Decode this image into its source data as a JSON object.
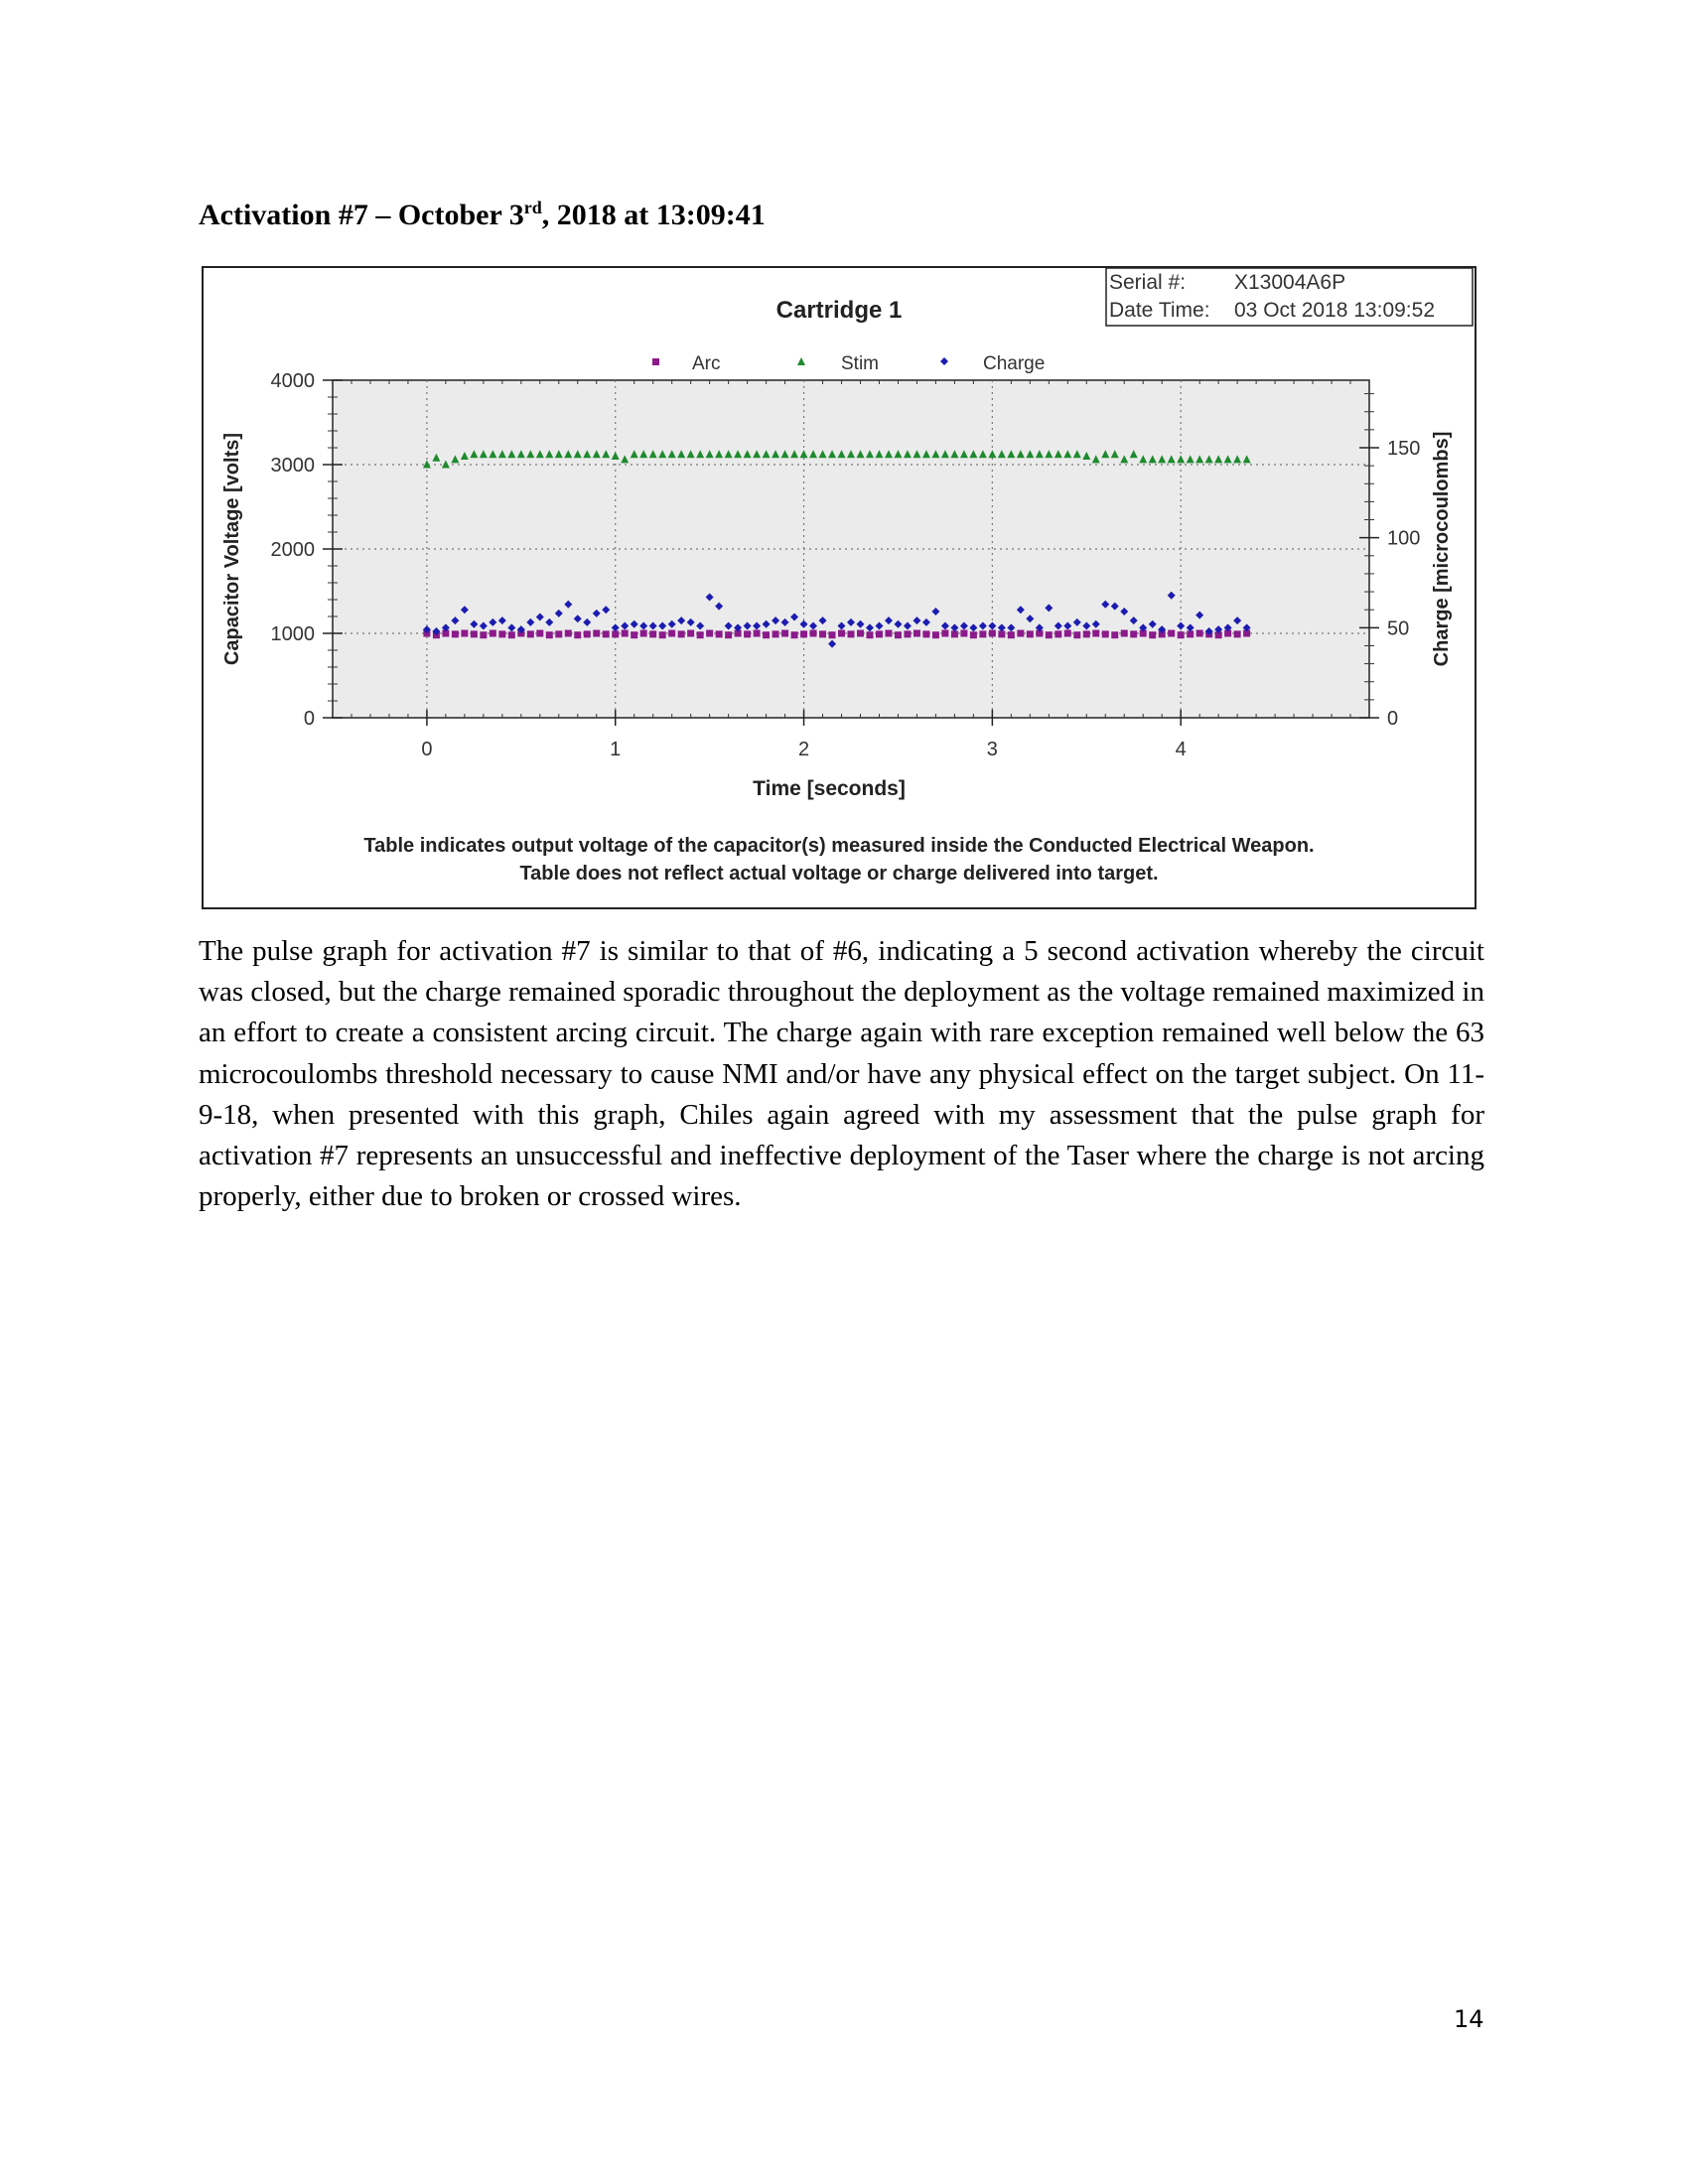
{
  "heading": {
    "prefix": "Activation #7 – October 3",
    "superscript": "rd",
    "suffix": ", 2018 at 13:09:41"
  },
  "figure": {
    "info_box": {
      "serial_label": "Serial #:",
      "serial_value": "X13004A6P",
      "datetime_label": "Date Time:",
      "datetime_value": "03 Oct 2018 13:09:52"
    },
    "caption_line1": "Table indicates output voltage of the capacitor(s) measured inside the Conducted Electrical Weapon.",
    "caption_line2": "Table does not reflect actual voltage or charge delivered into target.",
    "colors": {
      "arc": "#8b1a8b",
      "stim": "#1e8a2e",
      "charge": "#1c1cb0",
      "plot_bg": "#ebebeb"
    }
  },
  "chart_data": {
    "type": "scatter",
    "title": "Cartridge 1",
    "xlabel": "Time [seconds]",
    "ylabel": "Capacitor Voltage [volts]",
    "y2label": "Charge [microcoulombs]",
    "xlim": [
      -0.5,
      5
    ],
    "ylim": [
      0,
      4000
    ],
    "y2lim": [
      0,
      187.5
    ],
    "xticks": [
      0,
      1,
      2,
      3,
      4
    ],
    "yticks": [
      0,
      1000,
      2000,
      3000,
      4000
    ],
    "y2ticks": [
      0,
      50,
      100,
      150
    ],
    "legend": {
      "placement": "top-center",
      "entries": [
        "Arc",
        "Stim",
        "Charge"
      ]
    },
    "grid": true,
    "series": [
      {
        "name": "Arc",
        "axis": "left",
        "x": [
          0,
          0.05,
          0.1,
          0.15,
          0.2,
          0.25,
          0.3,
          0.35,
          0.4,
          0.45,
          0.5,
          0.55,
          0.6,
          0.65,
          0.7,
          0.75,
          0.8,
          0.85,
          0.9,
          0.95,
          1,
          1.05,
          1.1,
          1.15,
          1.2,
          1.25,
          1.3,
          1.35,
          1.4,
          1.45,
          1.5,
          1.55,
          1.6,
          1.65,
          1.7,
          1.75,
          1.8,
          1.85,
          1.9,
          1.95,
          2,
          2.05,
          2.1,
          2.15,
          2.2,
          2.25,
          2.3,
          2.35,
          2.4,
          2.45,
          2.5,
          2.55,
          2.6,
          2.65,
          2.7,
          2.75,
          2.8,
          2.85,
          2.9,
          2.95,
          3,
          3.05,
          3.1,
          3.15,
          3.2,
          3.25,
          3.3,
          3.35,
          3.4,
          3.45,
          3.5,
          3.55,
          3.6,
          3.65,
          3.7,
          3.75,
          3.8,
          3.85,
          3.9,
          3.95,
          4,
          4.05,
          4.1,
          4.15,
          4.2,
          4.25,
          4.3,
          4.35
        ],
        "y": [
          1000,
          980,
          1000,
          990,
          1000,
          990,
          980,
          1000,
          990,
          980,
          1000,
          990,
          1000,
          980,
          990,
          1000,
          980,
          990,
          1000,
          990,
          990,
          1000,
          980,
          1000,
          990,
          980,
          1000,
          990,
          1000,
          980,
          1000,
          990,
          980,
          1000,
          990,
          1000,
          980,
          990,
          1000,
          980,
          990,
          1000,
          990,
          980,
          1000,
          990,
          1000,
          980,
          990,
          1000,
          980,
          990,
          1000,
          990,
          980,
          1000,
          990,
          1000,
          980,
          990,
          1000,
          990,
          980,
          1000,
          990,
          1000,
          980,
          990,
          1000,
          980,
          990,
          1000,
          990,
          980,
          1000,
          990,
          1000,
          980,
          990,
          1000,
          980,
          990,
          1000,
          990,
          980,
          1000,
          990,
          1000
        ]
      },
      {
        "name": "Stim",
        "axis": "left",
        "x": [
          0,
          0.05,
          0.1,
          0.15,
          0.2,
          0.25,
          0.3,
          0.35,
          0.4,
          0.45,
          0.5,
          0.55,
          0.6,
          0.65,
          0.7,
          0.75,
          0.8,
          0.85,
          0.9,
          0.95,
          1,
          1.05,
          1.1,
          1.15,
          1.2,
          1.25,
          1.3,
          1.35,
          1.4,
          1.45,
          1.5,
          1.55,
          1.6,
          1.65,
          1.7,
          1.75,
          1.8,
          1.85,
          1.9,
          1.95,
          2,
          2.05,
          2.1,
          2.15,
          2.2,
          2.25,
          2.3,
          2.35,
          2.4,
          2.45,
          2.5,
          2.55,
          2.6,
          2.65,
          2.7,
          2.75,
          2.8,
          2.85,
          2.9,
          2.95,
          3,
          3.05,
          3.1,
          3.15,
          3.2,
          3.25,
          3.3,
          3.35,
          3.4,
          3.45,
          3.5,
          3.55,
          3.6,
          3.65,
          3.7,
          3.75,
          3.8,
          3.85,
          3.9,
          3.95,
          4,
          4.05,
          4.1,
          4.15,
          4.2,
          4.25,
          4.3,
          4.35
        ],
        "y": [
          3000,
          3080,
          3000,
          3060,
          3100,
          3120,
          3120,
          3120,
          3120,
          3120,
          3120,
          3120,
          3120,
          3120,
          3120,
          3120,
          3120,
          3120,
          3120,
          3120,
          3100,
          3060,
          3120,
          3120,
          3120,
          3120,
          3120,
          3120,
          3120,
          3120,
          3120,
          3120,
          3120,
          3120,
          3120,
          3120,
          3120,
          3120,
          3120,
          3120,
          3120,
          3120,
          3120,
          3120,
          3120,
          3120,
          3120,
          3120,
          3120,
          3120,
          3120,
          3120,
          3120,
          3120,
          3120,
          3120,
          3120,
          3120,
          3120,
          3120,
          3120,
          3120,
          3120,
          3120,
          3120,
          3120,
          3120,
          3120,
          3120,
          3120,
          3100,
          3060,
          3120,
          3120,
          3060,
          3120,
          3060,
          3060,
          3060,
          3060,
          3060,
          3060,
          3060,
          3060,
          3060,
          3060,
          3060,
          3060
        ]
      },
      {
        "name": "Charge",
        "axis": "right",
        "x": [
          0,
          0.05,
          0.1,
          0.15,
          0.2,
          0.25,
          0.3,
          0.35,
          0.4,
          0.45,
          0.5,
          0.55,
          0.6,
          0.65,
          0.7,
          0.75,
          0.8,
          0.85,
          0.9,
          0.95,
          1,
          1.05,
          1.1,
          1.15,
          1.2,
          1.25,
          1.3,
          1.35,
          1.4,
          1.45,
          1.5,
          1.55,
          1.6,
          1.65,
          1.7,
          1.75,
          1.8,
          1.85,
          1.9,
          1.95,
          2,
          2.05,
          2.1,
          2.15,
          2.2,
          2.25,
          2.3,
          2.35,
          2.4,
          2.45,
          2.5,
          2.55,
          2.6,
          2.65,
          2.7,
          2.75,
          2.8,
          2.85,
          2.9,
          2.95,
          3,
          3.05,
          3.1,
          3.15,
          3.2,
          3.25,
          3.3,
          3.35,
          3.4,
          3.45,
          3.5,
          3.55,
          3.6,
          3.65,
          3.7,
          3.75,
          3.8,
          3.85,
          3.9,
          3.95,
          4,
          4.05,
          4.1,
          4.15,
          4.2,
          4.25,
          4.3,
          4.35
        ],
        "y": [
          49,
          48,
          50,
          54,
          60,
          52,
          51,
          53,
          54,
          50,
          49,
          53,
          56,
          53,
          58,
          63,
          55,
          53,
          58,
          60,
          50,
          51,
          52,
          51,
          51,
          51,
          52,
          54,
          53,
          51,
          67,
          62,
          51,
          50,
          51,
          51,
          52,
          54,
          53,
          56,
          52,
          51,
          54,
          41,
          51,
          53,
          52,
          50,
          51,
          54,
          52,
          51,
          54,
          53,
          59,
          51,
          50,
          51,
          50,
          51,
          51,
          50,
          50,
          60,
          55,
          50,
          61,
          51,
          51,
          53,
          51,
          52,
          63,
          62,
          59,
          54,
          50,
          52,
          49,
          68,
          51,
          50,
          57,
          48,
          49,
          50,
          54,
          50
        ]
      }
    ]
  },
  "paragraph": "The pulse graph for activation #7 is similar to that of #6, indicating a 5 second activation whereby the circuit was closed, but the charge remained sporadic throughout the deployment as the voltage remained maximized in an effort to create a consistent arcing circuit. The charge again with rare exception remained well below the 63 microcoulombs threshold necessary to cause NMI and/or have any physical effect on the target subject. On 11-9-18, when presented with this graph, Chiles again agreed with my assessment that the pulse graph for activation #7 represents an unsuccessful and ineffective deployment of the Taser where the charge is not arcing properly, either due to broken or crossed wires.",
  "page_number": "14"
}
